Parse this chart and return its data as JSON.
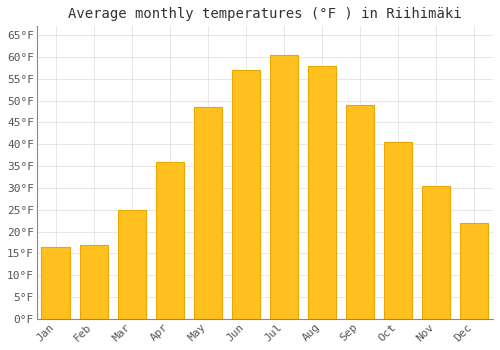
{
  "title": "Average monthly temperatures (°F ) in Riihimäki",
  "months": [
    "Jan",
    "Feb",
    "Mar",
    "Apr",
    "May",
    "Jun",
    "Jul",
    "Aug",
    "Sep",
    "Oct",
    "Nov",
    "Dec"
  ],
  "values": [
    16.5,
    17.0,
    25.0,
    36.0,
    48.5,
    57.0,
    60.5,
    58.0,
    49.0,
    40.5,
    30.5,
    22.0
  ],
  "bar_color": "#FFC020",
  "bar_edge_color": "#E8A800",
  "background_color": "#FFFFFF",
  "grid_color": "#DDDDDD",
  "ylim": [
    0,
    67
  ],
  "yticks": [
    0,
    5,
    10,
    15,
    20,
    25,
    30,
    35,
    40,
    45,
    50,
    55,
    60,
    65
  ],
  "title_fontsize": 10,
  "tick_fontsize": 8,
  "title_font": "monospace",
  "axis_font": "monospace"
}
